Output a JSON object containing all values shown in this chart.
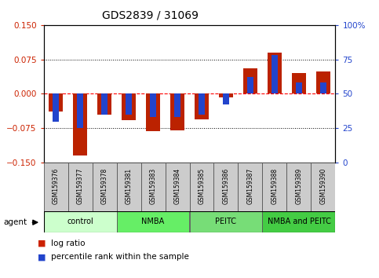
{
  "title": "GDS2839 / 31069",
  "samples": [
    "GSM159376",
    "GSM159377",
    "GSM159378",
    "GSM159381",
    "GSM159383",
    "GSM159384",
    "GSM159385",
    "GSM159386",
    "GSM159387",
    "GSM159388",
    "GSM159389",
    "GSM159390"
  ],
  "log_ratio": [
    -0.038,
    -0.135,
    -0.045,
    -0.058,
    -0.082,
    -0.08,
    -0.055,
    -0.008,
    0.055,
    0.09,
    0.045,
    0.048
  ],
  "percentile": [
    30,
    25,
    35,
    35,
    33,
    33,
    35,
    42,
    62,
    78,
    58,
    58
  ],
  "group_data": [
    {
      "label": "control",
      "start": 0,
      "end": 3,
      "color": "#ccffcc"
    },
    {
      "label": "NMBA",
      "start": 3,
      "end": 6,
      "color": "#66ee66"
    },
    {
      "label": "PEITC",
      "start": 6,
      "end": 9,
      "color": "#77dd77"
    },
    {
      "label": "NMBA and PEITC",
      "start": 9,
      "end": 12,
      "color": "#44cc44"
    }
  ],
  "ylim_left": [
    -0.15,
    0.15
  ],
  "ylim_right": [
    0,
    100
  ],
  "yticks_left": [
    -0.15,
    -0.075,
    0,
    0.075,
    0.15
  ],
  "yticks_right": [
    0,
    25,
    50,
    75,
    100
  ],
  "bar_width": 0.6,
  "blue_bar_width": 0.25,
  "red_color": "#bb2200",
  "blue_color": "#2244cc",
  "label_color_left": "#cc2200",
  "label_color_right": "#2244cc",
  "sample_box_color": "#cccccc",
  "legend_red": "#cc2200",
  "legend_blue": "#2244cc"
}
